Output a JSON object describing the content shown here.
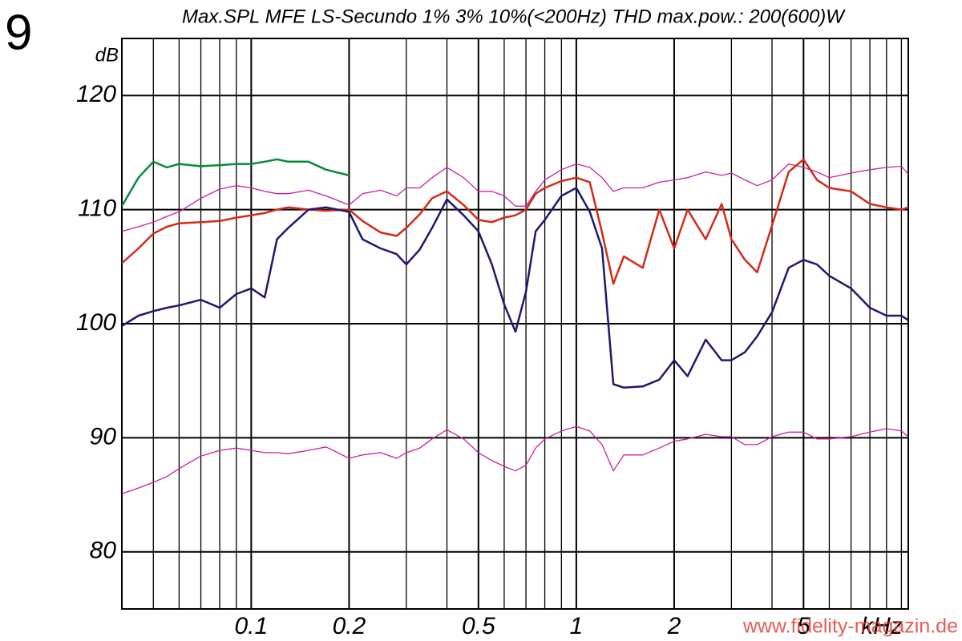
{
  "chart_data": {
    "type": "line",
    "figure_label": "9",
    "title": "Max.SPL MFE LS-Secundo 1% 3% 10%(<200Hz) THD max.pow.: 200(600)W",
    "y_label": "dB",
    "x_label": "kHz",
    "watermark": "www.fidelity-magazin.de",
    "x_log": true,
    "grid": true,
    "xlim": [
      0.04,
      10.5
    ],
    "ylim": [
      75,
      125
    ],
    "xticks": [
      0.1,
      0.2,
      0.5,
      1,
      2,
      5
    ],
    "xminor": [
      0.05,
      0.06,
      0.07,
      0.08,
      0.09,
      0.3,
      0.4,
      0.6,
      0.7,
      0.8,
      0.9,
      3,
      4,
      6,
      7,
      8,
      9,
      10
    ],
    "yticks": [
      80,
      90,
      100,
      110,
      120
    ],
    "x": [
      0.04,
      0.045,
      0.05,
      0.055,
      0.06,
      0.07,
      0.08,
      0.09,
      0.1,
      0.11,
      0.12,
      0.13,
      0.15,
      0.17,
      0.2,
      0.22,
      0.25,
      0.28,
      0.3,
      0.33,
      0.36,
      0.4,
      0.45,
      0.5,
      0.55,
      0.6,
      0.65,
      0.7,
      0.75,
      0.8,
      0.9,
      1,
      1.1,
      1.2,
      1.3,
      1.4,
      1.6,
      1.8,
      2,
      2.2,
      2.5,
      2.8,
      3,
      3.3,
      3.6,
      4,
      4.5,
      5,
      5.5,
      6,
      7,
      8,
      9,
      10,
      10.5
    ],
    "series": [
      {
        "color": "#0a8a3a",
        "width": 2.5,
        "values": [
          110.3,
          112.8,
          114.2,
          113.7,
          114,
          113.8,
          113.9,
          114,
          114,
          114.2,
          114.4,
          114.2,
          114.2,
          113.5,
          113,
          null,
          null,
          null,
          null,
          null,
          null,
          null,
          null,
          null,
          null,
          null,
          null,
          null,
          null,
          null,
          null,
          null,
          null,
          null,
          null,
          null,
          null,
          null,
          null,
          null,
          null,
          null,
          null,
          null,
          null,
          null,
          null,
          null,
          null,
          null,
          null,
          null,
          null,
          null,
          null
        ]
      },
      {
        "color": "#cc1fa0",
        "width": 1.3,
        "values": [
          108.1,
          108.5,
          108.9,
          109.4,
          109.8,
          111,
          111.8,
          112.1,
          111.9,
          111.6,
          111.4,
          111.4,
          111.7,
          111.2,
          110.4,
          111.4,
          111.7,
          111.2,
          111.9,
          111.9,
          112.8,
          113.7,
          112.8,
          111.6,
          111.6,
          111.2,
          110.3,
          110.3,
          111.6,
          112.6,
          113.5,
          114,
          113.7,
          112.8,
          111.6,
          111.9,
          111.9,
          112.4,
          112.6,
          112.8,
          113.3,
          113,
          113.2,
          112.6,
          112.1,
          112.6,
          114,
          113.7,
          113.3,
          112.8,
          113.2,
          113.5,
          113.7,
          113.8,
          113.1
        ]
      },
      {
        "color": "#d42a1a",
        "width": 2.5,
        "values": [
          105.3,
          106.6,
          107.9,
          108.5,
          108.8,
          108.9,
          109,
          109.3,
          109.5,
          109.7,
          110,
          110.2,
          110,
          109.9,
          110,
          109,
          108,
          107.7,
          108.4,
          109.6,
          111,
          111.6,
          110.4,
          109.1,
          108.9,
          109.3,
          109.5,
          110,
          111.4,
          111.9,
          112.5,
          112.8,
          112.4,
          108,
          103.5,
          105.9,
          104.9,
          110,
          106.6,
          110,
          107.4,
          110.5,
          107.4,
          105.6,
          104.5,
          108.6,
          113.3,
          114.4,
          112.6,
          111.9,
          111.6,
          110.5,
          110.2,
          110,
          110.2
        ]
      },
      {
        "color": "#1c1a6e",
        "width": 2.5,
        "values": [
          99.8,
          100.7,
          101.1,
          101.4,
          101.6,
          102.1,
          101.4,
          102.6,
          103.1,
          102.3,
          107.4,
          108.4,
          110,
          110.2,
          109.8,
          107.4,
          106.6,
          106.1,
          105.2,
          106.5,
          108.4,
          110.9,
          109.5,
          108.1,
          105.2,
          101.7,
          99.3,
          102.8,
          108.1,
          109.1,
          111.2,
          111.9,
          109.8,
          106.6,
          94.7,
          94.4,
          94.5,
          95.1,
          96.8,
          95.4,
          98.6,
          96.8,
          96.8,
          97.5,
          98.9,
          101,
          104.9,
          105.6,
          105.2,
          104.2,
          103.1,
          101.4,
          100.7,
          100.7,
          100.3
        ]
      },
      {
        "color": "#cc1fa0",
        "width": 1.3,
        "values": [
          85.1,
          85.6,
          86.1,
          86.6,
          87.3,
          88.4,
          88.9,
          89.1,
          88.9,
          88.7,
          88.7,
          88.6,
          88.9,
          89.2,
          88.2,
          88.5,
          88.7,
          88.2,
          88.7,
          89.1,
          89.9,
          90.7,
          89.9,
          88.7,
          88,
          87.5,
          87.1,
          87.6,
          89.1,
          89.9,
          90.6,
          91,
          90.6,
          89.4,
          87.1,
          88.5,
          88.5,
          89.1,
          89.7,
          89.9,
          90.3,
          90.1,
          90.1,
          89.4,
          89.4,
          90.1,
          90.5,
          90.5,
          89.9,
          89.9,
          90.1,
          90.5,
          90.8,
          90.6,
          90.1
        ]
      }
    ]
  }
}
